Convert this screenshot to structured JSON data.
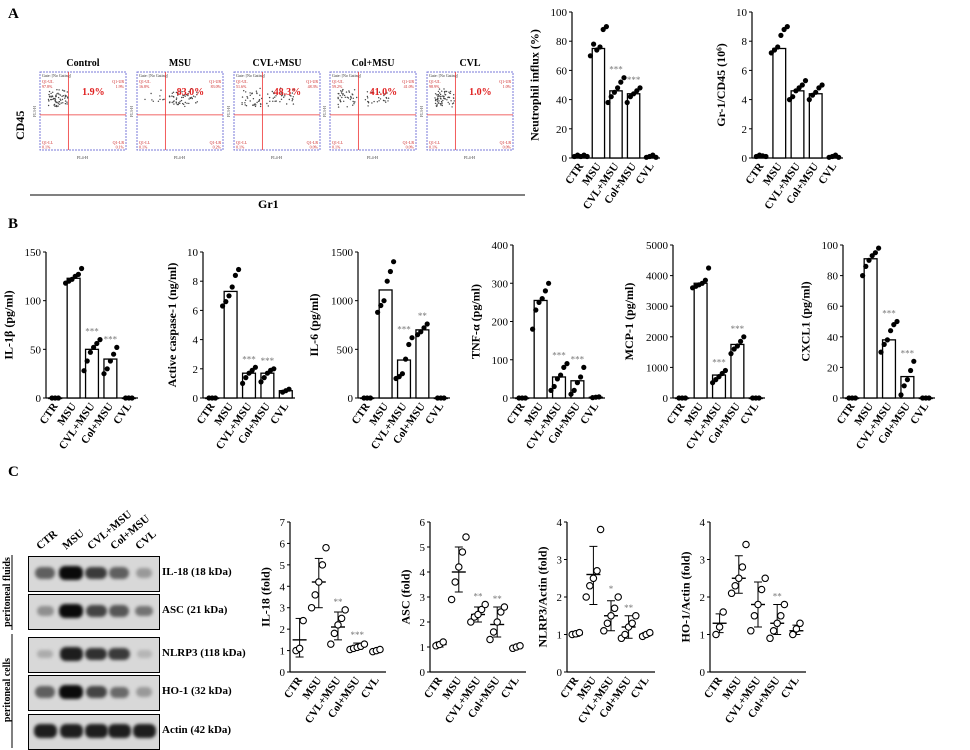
{
  "panels": {
    "a": "A",
    "b": "B",
    "c": "C"
  },
  "flow": {
    "y_axis_label": "CD45",
    "x_axis_label": "Gr1",
    "gate_text": "Gate: [No Gating]",
    "x_channel": "FL4-H",
    "y_channel": "FL3-H",
    "plots": [
      {
        "title": "Control",
        "value": "1.9%",
        "ul": "Q1-UL",
        "ul_v": "97.8%",
        "ur": "Q1-UR",
        "ur_v": "1.9%",
        "ll": "Q1-LL",
        "ll_v": "0.1%",
        "lr": "Q1-LR",
        "lr_v": "0.1%"
      },
      {
        "title": "MSU",
        "value": "83.0%",
        "ul": "Q1-UL",
        "ul_v": "16.8%",
        "ur": "Q1-UR",
        "ur_v": "83.0%",
        "ll": "Q1-LL",
        "ll_v": "0.1%",
        "lr": "Q1-LR",
        "lr_v": "0.2%"
      },
      {
        "title": "CVL+MSU",
        "value": "48.3%",
        "ul": "Q1-UL",
        "ul_v": "51.6%",
        "ur": "Q1-UR",
        "ur_v": "48.3%",
        "ll": "Q1-LL",
        "ll_v": "0.1%",
        "lr": "Q1-LR",
        "lr_v": "0.0%"
      },
      {
        "title": "Col+MSU",
        "value": "41.0%",
        "ul": "Q1-UL",
        "ul_v": "59.2%",
        "ur": "Q1-UR",
        "ur_v": "41.0%",
        "ll": "Q1-LL",
        "ll_v": "0.1%",
        "lr": "Q1-LR",
        "lr_v": "0.0%"
      },
      {
        "title": "CVL",
        "value": "1.0%",
        "ul": "Q1-UL",
        "ul_v": "98.9%",
        "ur": "Q1-UR",
        "ur_v": "1.0%",
        "ll": "Q1-LL",
        "ll_v": "0.1%",
        "lr": "Q1-LR",
        "lr_v": "0.0%"
      }
    ]
  },
  "blots": {
    "groups": [
      "peritoneal fluids",
      "peritoneal cells"
    ],
    "lanes": [
      "CTR",
      "MSU",
      "CVL+MSU",
      "Col+MSU",
      "CVL"
    ],
    "bands": [
      {
        "label": "IL-18 (18 kDa)",
        "intensity": [
          0.55,
          1.0,
          0.75,
          0.55,
          0.25
        ]
      },
      {
        "label": "ASC (21 kDa)",
        "intensity": [
          0.3,
          1.0,
          0.7,
          0.6,
          0.45
        ]
      },
      {
        "label": "NLRP3 (118 kDa)",
        "intensity": [
          0.15,
          0.9,
          0.8,
          0.75,
          0.1
        ]
      },
      {
        "label": "HO-1 (32 kDa)",
        "intensity": [
          0.55,
          1.0,
          0.7,
          0.5,
          0.25
        ]
      },
      {
        "label": "Actin (42 kDa)",
        "intensity": [
          0.9,
          0.9,
          0.9,
          0.9,
          0.9
        ]
      }
    ]
  },
  "chart_data": [
    {
      "id": "neutrophil",
      "type": "bar",
      "categories": [
        "CTR",
        "MSU",
        "CVL+MSU",
        "Col+MSU",
        "CVL"
      ],
      "values": [
        1.5,
        75,
        46,
        44,
        1
      ],
      "ylabel": "Neutrophil influx (%)",
      "ylim": [
        0,
        100
      ],
      "yticks": [
        "0",
        "20",
        "40",
        "60",
        "80",
        "100"
      ],
      "points": [
        [
          1,
          2,
          1,
          2,
          1
        ],
        [
          70,
          78,
          74,
          76,
          88,
          90
        ],
        [
          38,
          42,
          45,
          48,
          52,
          55
        ],
        [
          38,
          42,
          44,
          46,
          48
        ],
        [
          0.5,
          1,
          2,
          0.5
        ]
      ],
      "sig": [
        "",
        "",
        "***",
        "***",
        ""
      ]
    },
    {
      "id": "gr1cd45",
      "type": "bar",
      "categories": [
        "CTR",
        "MSU",
        "CVL+MSU",
        "Col+MSU",
        "CVL"
      ],
      "values": [
        0.15,
        7.5,
        4.6,
        4.4,
        0.1
      ],
      "ylabel": "Gr-1/CD45 (10⁶)",
      "ylim": [
        0,
        10
      ],
      "yticks": [
        "0",
        "2",
        "4",
        "6",
        "8",
        "10"
      ],
      "points": [
        [
          0.1,
          0.2,
          0.15,
          0.1
        ],
        [
          7.2,
          7.4,
          7.6,
          8.4,
          8.8,
          9.0
        ],
        [
          4.0,
          4.2,
          4.6,
          4.8,
          5.0,
          5.3
        ],
        [
          4.0,
          4.3,
          4.5,
          4.8,
          5.0
        ],
        [
          0.05,
          0.1,
          0.2,
          0.05
        ]
      ],
      "sig": [
        "",
        "",
        "",
        "",
        ""
      ]
    },
    {
      "id": "il1b",
      "type": "bar",
      "categories": [
        "CTR",
        "MSU",
        "CVL+MSU",
        "Col+MSU",
        "CVL"
      ],
      "values": [
        0,
        123,
        50,
        40,
        0
      ],
      "ylabel": "IL-1β (pg/ml)",
      "ylim": [
        0,
        150
      ],
      "yticks": [
        "0",
        "50",
        "100",
        "150"
      ],
      "points": [
        [
          0,
          0,
          0
        ],
        [
          118,
          120,
          122,
          125,
          127,
          133
        ],
        [
          28,
          38,
          47,
          52,
          56,
          60
        ],
        [
          25,
          30,
          38,
          45,
          52
        ],
        [
          0,
          0,
          0
        ]
      ],
      "sig": [
        "",
        "",
        "***",
        "***",
        ""
      ]
    },
    {
      "id": "caspase1",
      "type": "bar",
      "categories": [
        "CTR",
        "MSU",
        "CVL+MSU",
        "Col+MSU",
        "CVL"
      ],
      "values": [
        0,
        7.3,
        1.7,
        1.7,
        0.5
      ],
      "ylabel": "Active caspase-1 (ng/ml)",
      "ylim": [
        0,
        10
      ],
      "yticks": [
        "0",
        "2",
        "4",
        "6",
        "8",
        "10"
      ],
      "points": [
        [
          0,
          0,
          0
        ],
        [
          6.3,
          6.6,
          7.0,
          7.6,
          8.4,
          8.8
        ],
        [
          1.0,
          1.4,
          1.7,
          1.9,
          2.1
        ],
        [
          1.1,
          1.4,
          1.7,
          1.9,
          2.0
        ],
        [
          0.4,
          0.5,
          0.6
        ]
      ],
      "sig": [
        "",
        "",
        "***",
        "***",
        ""
      ]
    },
    {
      "id": "il6",
      "type": "bar",
      "categories": [
        "CTR",
        "MSU",
        "CVL+MSU",
        "Col+MSU",
        "CVL"
      ],
      "values": [
        0,
        1110,
        390,
        700,
        0
      ],
      "ylabel": "IL-6 (pg/ml)",
      "ylim": [
        0,
        1500
      ],
      "yticks": [
        "0",
        "500",
        "1000",
        "1500"
      ],
      "points": [
        [
          0,
          0,
          0
        ],
        [
          880,
          950,
          1000,
          1200,
          1300,
          1400
        ],
        [
          200,
          220,
          250,
          400,
          550,
          620
        ],
        [
          650,
          680,
          720,
          760
        ],
        [
          0,
          0,
          0
        ]
      ],
      "sig": [
        "",
        "",
        "***",
        "**",
        ""
      ]
    },
    {
      "id": "tnfa",
      "type": "bar",
      "categories": [
        "CTR",
        "MSU",
        "CVL+MSU",
        "Col+MSU",
        "CVL"
      ],
      "values": [
        0,
        255,
        55,
        45,
        2
      ],
      "ylabel": "TNF-α (pg/ml)",
      "ylim": [
        0,
        400
      ],
      "yticks": [
        "0",
        "100",
        "200",
        "300",
        "400"
      ],
      "points": [
        [
          0,
          0,
          0
        ],
        [
          180,
          230,
          250,
          260,
          280,
          300
        ],
        [
          20,
          30,
          50,
          60,
          80,
          90
        ],
        [
          10,
          20,
          40,
          55,
          80
        ],
        [
          1,
          2,
          3
        ]
      ],
      "sig": [
        "",
        "",
        "***",
        "***",
        ""
      ]
    },
    {
      "id": "mcp1",
      "type": "bar",
      "categories": [
        "CTR",
        "MSU",
        "CVL+MSU",
        "Col+MSU",
        "CVL"
      ],
      "values": [
        0,
        3750,
        750,
        1750,
        0
      ],
      "ylabel": "MCP-1 (pg/ml)",
      "ylim": [
        0,
        5000
      ],
      "yticks": [
        "0",
        "1000",
        "2000",
        "3000",
        "4000",
        "5000"
      ],
      "points": [
        [
          0,
          0,
          0
        ],
        [
          3600,
          3650,
          3700,
          3750,
          3850,
          4250
        ],
        [
          500,
          600,
          700,
          800,
          900
        ],
        [
          1450,
          1600,
          1700,
          1850,
          2000
        ],
        [
          0,
          0,
          0
        ]
      ],
      "sig": [
        "",
        "",
        "***",
        "***",
        ""
      ]
    },
    {
      "id": "cxcl1",
      "type": "bar",
      "categories": [
        "CTR",
        "MSU",
        "CVL+MSU",
        "Col+MSU",
        "CVL"
      ],
      "values": [
        0,
        91,
        38,
        14,
        0
      ],
      "ylabel": "CXCL1 (pg/ml)",
      "ylim": [
        0,
        100
      ],
      "yticks": [
        "0",
        "20",
        "40",
        "60",
        "80",
        "100"
      ],
      "points": [
        [
          0,
          0,
          0
        ],
        [
          80,
          86,
          90,
          93,
          95,
          98
        ],
        [
          30,
          35,
          38,
          44,
          48,
          50
        ],
        [
          2,
          8,
          12,
          18,
          24
        ],
        [
          0,
          0,
          0
        ]
      ],
      "sig": [
        "",
        "",
        "***",
        "***",
        ""
      ]
    },
    {
      "id": "il18fold",
      "type": "scatter",
      "categories": [
        "CTR",
        "MSU",
        "CVL+MSU",
        "Col+MSU",
        "CVL"
      ],
      "means": [
        1.5,
        4.2,
        2.1,
        1.2,
        1.0
      ],
      "sd_low": [
        0.7,
        3.0,
        1.5,
        1.05,
        0.9
      ],
      "sd_high": [
        2.5,
        5.3,
        2.8,
        1.35,
        1.05
      ],
      "ylabel": "IL-18 (fold)",
      "ylim": [
        0,
        7
      ],
      "yticks": [
        "0",
        "1",
        "2",
        "3",
        "4",
        "5",
        "6",
        "7"
      ],
      "points": [
        [
          1.0,
          1.1,
          2.4
        ],
        [
          3.0,
          3.6,
          4.2,
          5.0,
          5.8
        ],
        [
          1.3,
          1.8,
          2.2,
          2.5,
          2.9
        ],
        [
          1.05,
          1.1,
          1.15,
          1.2,
          1.3
        ],
        [
          0.95,
          1.0,
          1.05
        ]
      ],
      "sig": [
        "",
        "",
        "**",
        "***",
        ""
      ]
    },
    {
      "id": "ascfold",
      "type": "scatter",
      "categories": [
        "CTR",
        "MSU",
        "CVL+MSU",
        "Col+MSU",
        "CVL"
      ],
      "means": [
        1.1,
        4.0,
        2.3,
        1.9,
        1.0
      ],
      "sd_low": [
        1.0,
        3.2,
        2.0,
        1.4,
        0.95
      ],
      "sd_high": [
        1.2,
        5.0,
        2.6,
        2.6,
        1.05
      ],
      "ylabel": "ASC (fold)",
      "ylim": [
        0,
        6
      ],
      "yticks": [
        "0",
        "1",
        "2",
        "3",
        "4",
        "5",
        "6"
      ],
      "points": [
        [
          1.05,
          1.1,
          1.2
        ],
        [
          2.9,
          3.6,
          4.2,
          4.8,
          5.4
        ],
        [
          2.0,
          2.2,
          2.3,
          2.5,
          2.7
        ],
        [
          1.3,
          1.6,
          2.0,
          2.4,
          2.6
        ],
        [
          0.95,
          1.0,
          1.05
        ]
      ],
      "sig": [
        "",
        "",
        "**",
        "**",
        ""
      ]
    },
    {
      "id": "nlrp3fold",
      "type": "scatter",
      "categories": [
        "CTR",
        "MSU",
        "CVL+MSU",
        "Col+MSU",
        "CVL"
      ],
      "means": [
        1.0,
        2.6,
        1.5,
        1.2,
        1.0
      ],
      "sd_low": [
        0.95,
        1.8,
        1.1,
        0.9,
        0.95
      ],
      "sd_high": [
        1.05,
        3.35,
        1.9,
        1.5,
        1.05
      ],
      "ylabel": "NLRP3/Actin (fold)",
      "ylim": [
        0,
        4
      ],
      "yticks": [
        "0",
        "1",
        "2",
        "3",
        "4"
      ],
      "points": [
        [
          1.0,
          1.02,
          1.05
        ],
        [
          2.0,
          2.3,
          2.5,
          2.7,
          3.8
        ],
        [
          1.1,
          1.3,
          1.5,
          1.7,
          2.0
        ],
        [
          0.9,
          1.0,
          1.2,
          1.3,
          1.5
        ],
        [
          0.95,
          1.0,
          1.05
        ]
      ],
      "sig": [
        "",
        "",
        "*",
        "**",
        ""
      ]
    },
    {
      "id": "ho1fold",
      "type": "scatter",
      "categories": [
        "CTR",
        "MSU",
        "CVL+MSU",
        "Col+MSU",
        "CVL"
      ],
      "means": [
        1.3,
        2.5,
        1.8,
        1.3,
        1.1
      ],
      "sd_low": [
        1.05,
        2.1,
        1.2,
        1.0,
        1.0
      ],
      "sd_high": [
        1.55,
        3.1,
        2.4,
        1.8,
        1.25
      ],
      "ylabel": "HO-1/Actin (fold)",
      "ylim": [
        0,
        4
      ],
      "yticks": [
        "0",
        "1",
        "2",
        "3",
        "4"
      ],
      "points": [
        [
          1.0,
          1.2,
          1.6
        ],
        [
          2.1,
          2.3,
          2.5,
          2.8,
          3.4
        ],
        [
          1.1,
          1.5,
          1.8,
          2.2,
          2.5
        ],
        [
          0.9,
          1.1,
          1.3,
          1.5,
          1.8
        ],
        [
          1.0,
          1.15,
          1.3
        ]
      ],
      "sig": [
        "",
        "",
        "",
        "**",
        ""
      ]
    }
  ]
}
